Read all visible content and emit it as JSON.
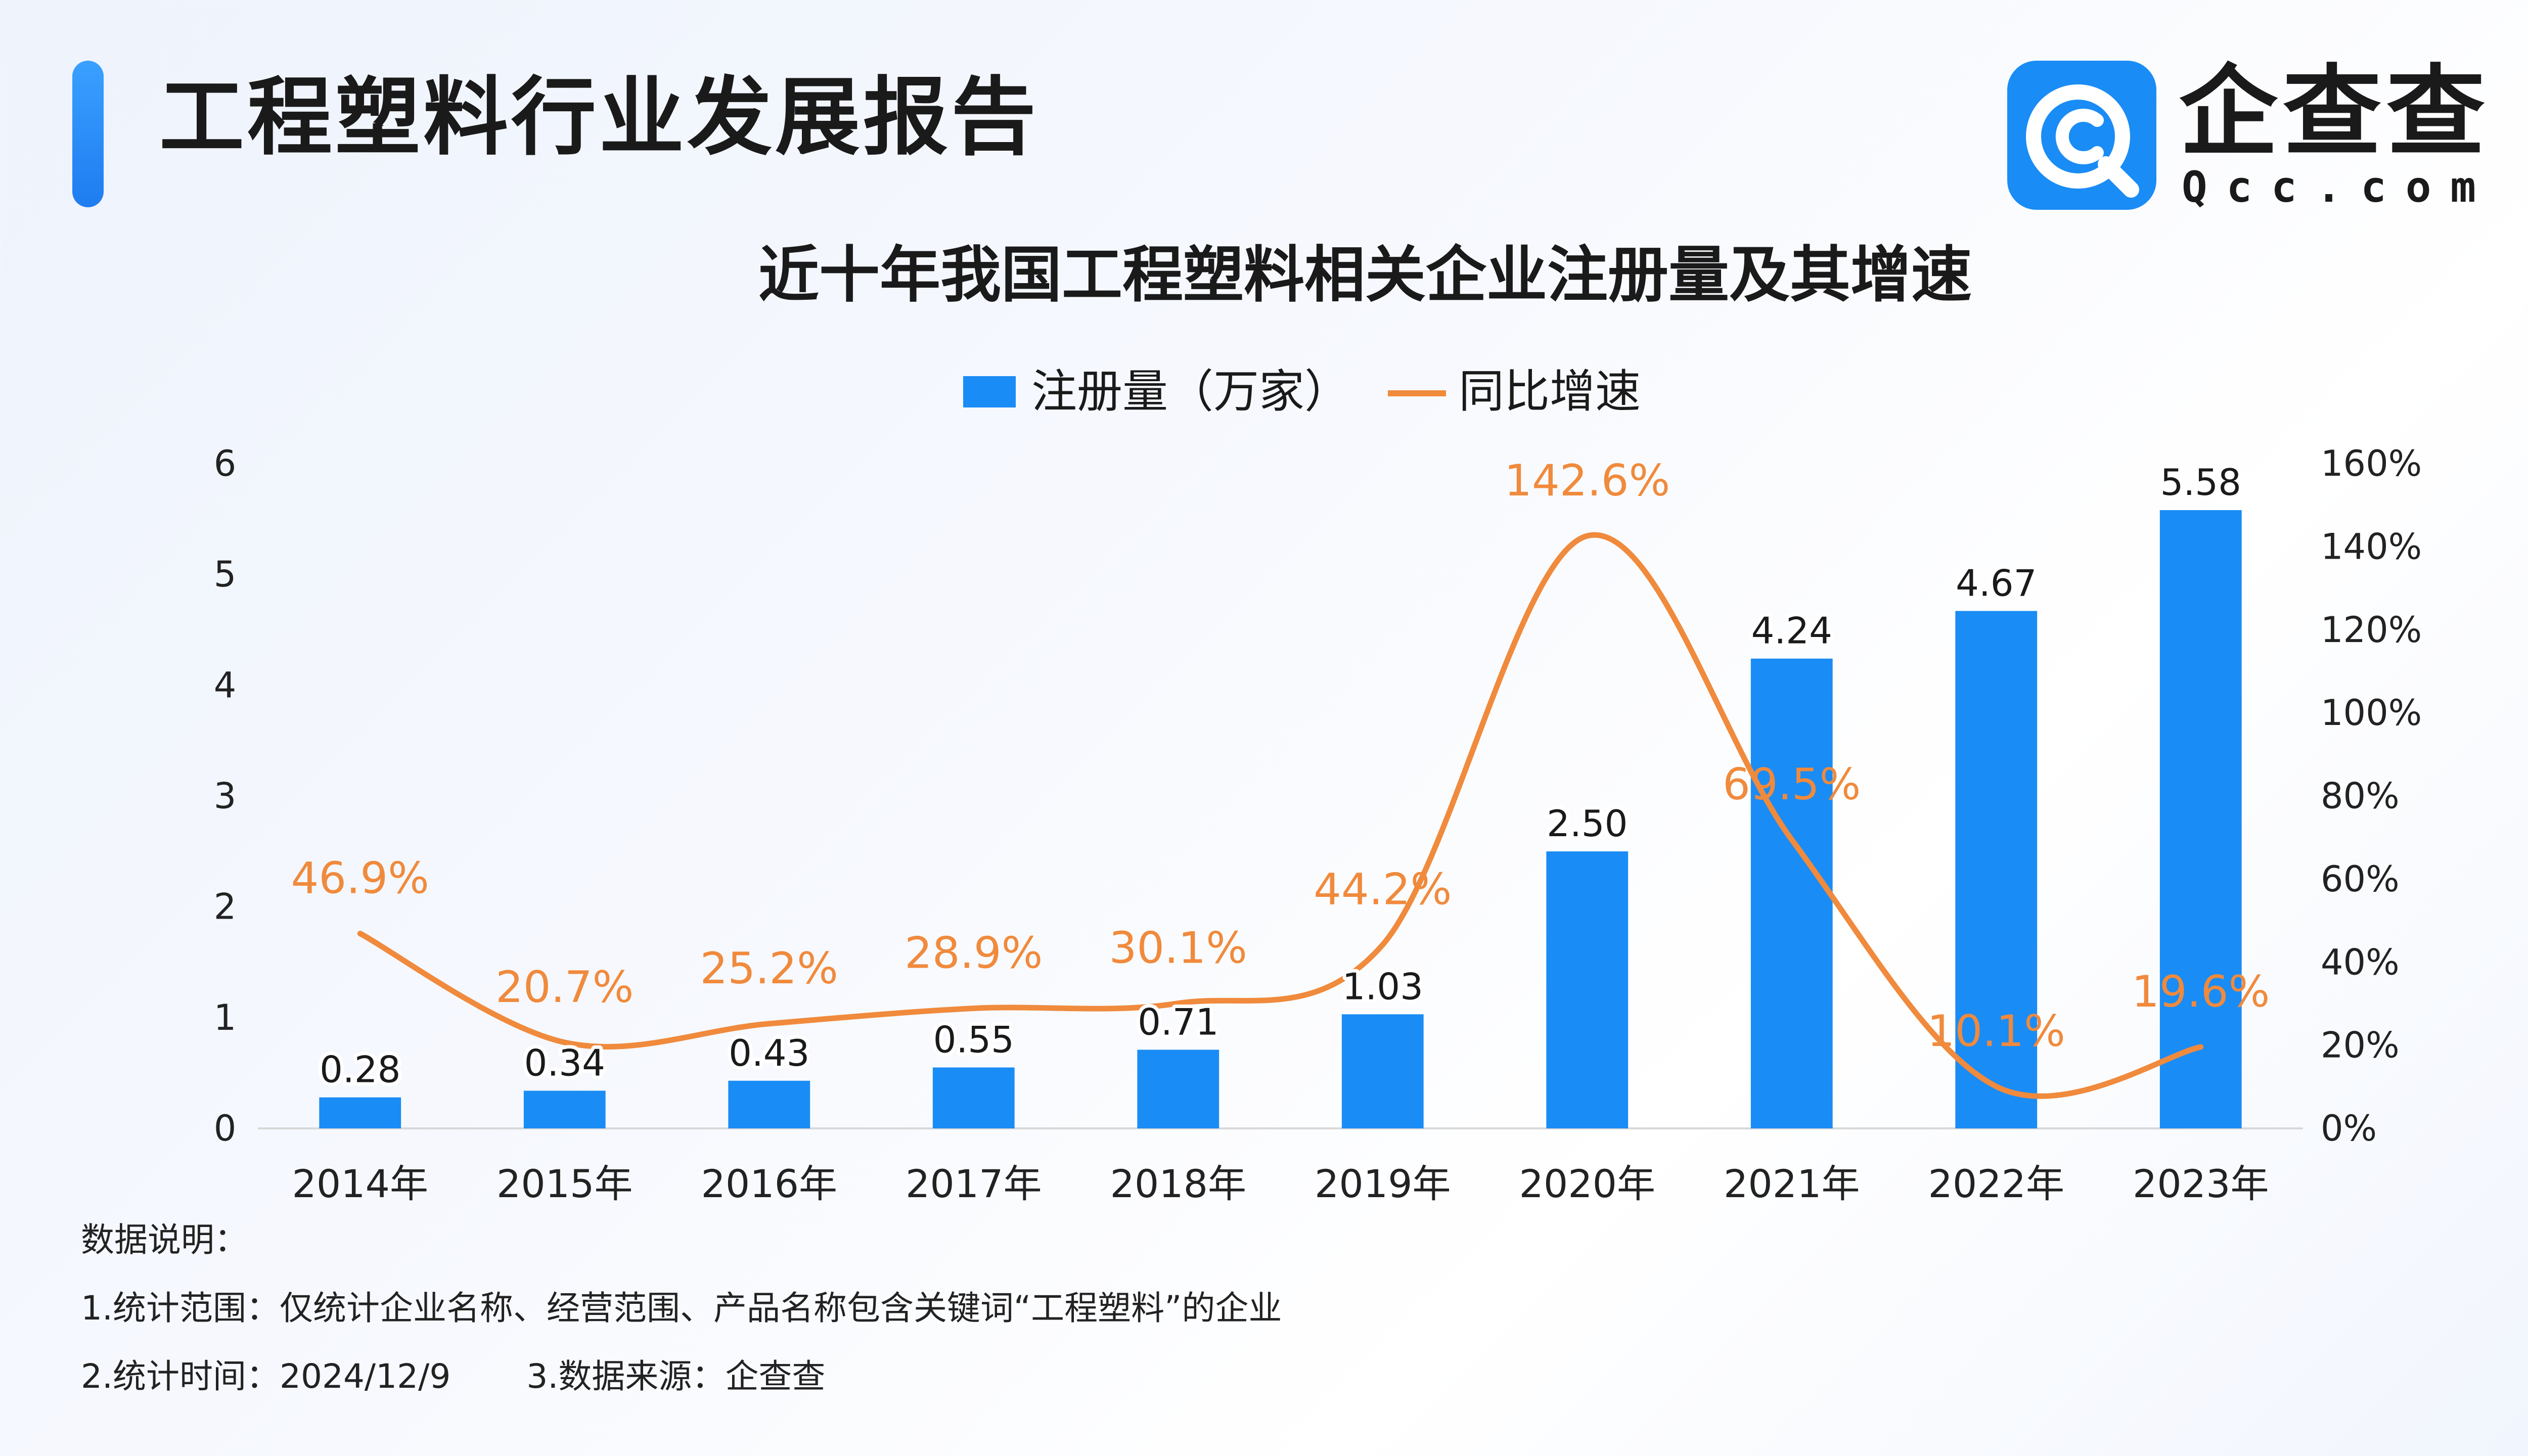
{
  "header": {
    "title": "工程塑料行业发展报告"
  },
  "logo": {
    "name": "企查查",
    "domain": "Qcc.com"
  },
  "colors": {
    "accent": "#1a8cf5",
    "bar": "#1a8cf5",
    "line": "#f08a3c",
    "axis_text": "#222222"
  },
  "chart_data": {
    "type": "bar",
    "title": "近十年我国工程塑料相关企业注册量及其增速",
    "legend_position": "top-center",
    "grid": false,
    "categories": [
      "2014年",
      "2015年",
      "2016年",
      "2017年",
      "2018年",
      "2019年",
      "2020年",
      "2021年",
      "2022年",
      "2023年"
    ],
    "series": [
      {
        "name": "注册量（万家）",
        "type": "bar",
        "axis": "left",
        "values": [
          0.28,
          0.34,
          0.43,
          0.55,
          0.71,
          1.03,
          2.5,
          4.24,
          4.67,
          5.58
        ],
        "labels": [
          "0.28",
          "0.34",
          "0.43",
          "0.55",
          "0.71",
          "1.03",
          "2.50",
          "4.24",
          "4.67",
          "5.58"
        ]
      },
      {
        "name": "同比增速",
        "type": "line",
        "smooth": true,
        "axis": "right",
        "values": [
          46.9,
          20.7,
          25.2,
          28.9,
          30.1,
          44.2,
          142.6,
          69.5,
          10.1,
          19.6
        ],
        "labels": [
          "46.9%",
          "20.7%",
          "25.2%",
          "28.9%",
          "30.1%",
          "44.2%",
          "142.6%",
          "69.5%",
          "10.1%",
          "19.6%"
        ]
      }
    ],
    "y_left": {
      "ylim": [
        0,
        6
      ],
      "ticks": [
        "0",
        "1",
        "2",
        "3",
        "4",
        "5",
        "6"
      ]
    },
    "y_right": {
      "ylim": [
        0,
        160
      ],
      "ticks": [
        "0%",
        "20%",
        "40%",
        "60%",
        "80%",
        "100%",
        "120%",
        "140%",
        "160%"
      ]
    }
  },
  "notes": {
    "heading": "数据说明：",
    "line1": "1.统计范围：仅统计企业名称、经营范围、产品名称包含关键词“工程塑料”的企业",
    "line2a": "2.统计时间：2024/12/9",
    "line2b": "3.数据来源：企查查"
  }
}
